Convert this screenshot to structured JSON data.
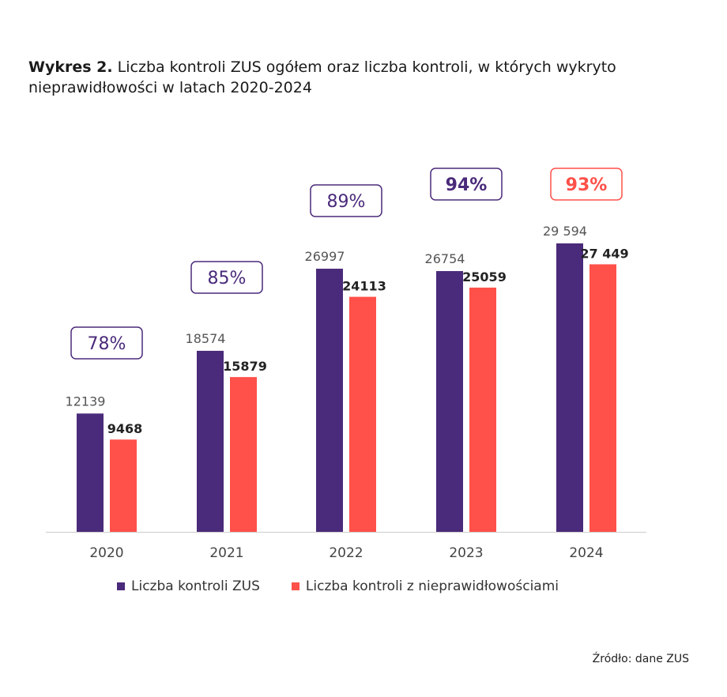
{
  "title": {
    "lead": "Wykres 2.",
    "text": "Liczba kontroli ZUS ogółem oraz liczba kontroli, w których wykryto nieprawidłowości w latach 2020-2024"
  },
  "colors": {
    "series1": "#4a2a7a",
    "series2": "#ff5049",
    "box_default": "#4a2a7a",
    "box_highlight_2024": "#ff5049",
    "axis": "#cccccc"
  },
  "chart_data": {
    "type": "bar",
    "title": "Liczba kontroli ZUS ogółem oraz liczba kontroli, w których wykryto nieprawidłowości w latach 2020-2024",
    "categories": [
      "2020",
      "2021",
      "2022",
      "2023",
      "2024"
    ],
    "series": [
      {
        "name": "Liczba kontroli ZUS",
        "values": [
          12139,
          18574,
          26997,
          26754,
          29594
        ],
        "labels": [
          "12139",
          "18574",
          "26997",
          "26754",
          "29 594"
        ]
      },
      {
        "name": "Liczba kontroli z nieprawidłowościami",
        "values": [
          9468,
          15879,
          24113,
          25059,
          27449
        ],
        "labels": [
          "9468",
          "15879",
          "24113",
          "25059",
          "27 449"
        ]
      }
    ],
    "percentages": [
      "78%",
      "85%",
      "89%",
      "94%",
      "93%"
    ],
    "ylim": [
      0,
      30000
    ],
    "xlabel": "",
    "ylabel": "",
    "legend_position": "bottom-center"
  },
  "legend": {
    "item1": "Liczba kontroli ZUS",
    "item2": "Liczba kontroli z nieprawidłowościami"
  },
  "source": "Źródło: dane ZUS"
}
